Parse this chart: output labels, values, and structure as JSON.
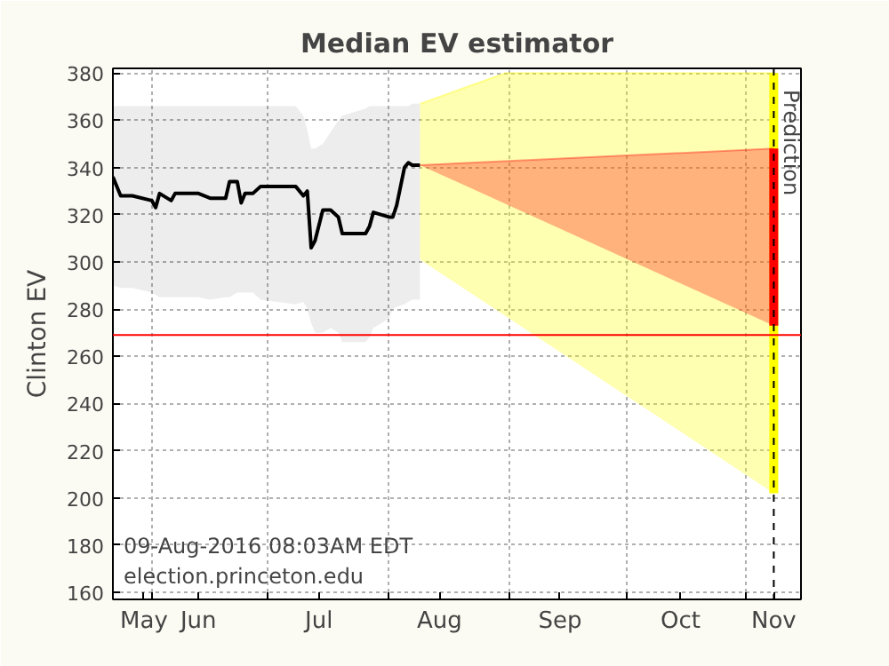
{
  "chart_data": {
    "type": "line",
    "title": "Median EV estimator",
    "ylabel": "Clinton EV",
    "xlim": [
      "2016-05-22",
      "2016-11-15"
    ],
    "ylim": [
      157,
      382
    ],
    "yticks": [
      160,
      180,
      200,
      220,
      240,
      260,
      280,
      300,
      320,
      340,
      360,
      380
    ],
    "xticks": [
      {
        "value": "2016-05-30",
        "label": "May"
      },
      {
        "value": "2016-06-01",
        "label": null
      },
      {
        "value": "2016-06-13",
        "label": "Jun"
      },
      {
        "value": "2016-07-01",
        "label": null
      },
      {
        "value": "2016-07-14",
        "label": "Jul"
      },
      {
        "value": "2016-08-01",
        "label": null
      },
      {
        "value": "2016-08-14",
        "label": "Aug"
      },
      {
        "value": "2016-09-01",
        "label": null
      },
      {
        "value": "2016-09-14",
        "label": "Sep"
      },
      {
        "value": "2016-10-01",
        "label": null
      },
      {
        "value": "2016-10-15",
        "label": "Oct"
      },
      {
        "value": "2016-11-01",
        "label": null
      },
      {
        "value": "2016-11-08",
        "label": "Nov"
      }
    ],
    "grid": true,
    "series": [
      {
        "color": "#000000",
        "x": [
          "2016-05-22",
          "2016-05-24",
          "2016-05-27",
          "2016-06-01",
          "2016-06-02",
          "2016-06-03",
          "2016-06-06",
          "2016-06-07",
          "2016-06-13",
          "2016-06-16",
          "2016-06-20",
          "2016-06-21",
          "2016-06-23",
          "2016-06-24",
          "2016-06-25",
          "2016-06-27",
          "2016-06-29",
          "2016-07-08",
          "2016-07-10",
          "2016-07-11",
          "2016-07-12",
          "2016-07-13",
          "2016-07-15",
          "2016-07-17",
          "2016-07-19",
          "2016-07-20",
          "2016-07-26",
          "2016-07-27",
          "2016-07-28",
          "2016-08-01",
          "2016-08-02",
          "2016-08-03",
          "2016-08-05",
          "2016-08-06",
          "2016-08-07",
          "2016-08-09"
        ],
        "values": [
          336,
          328,
          328,
          326,
          323,
          329,
          326,
          329,
          329,
          327,
          327,
          334,
          334,
          325,
          329,
          329,
          332,
          332,
          328,
          330,
          306,
          309,
          322,
          322,
          319,
          312,
          312,
          315,
          321,
          319,
          319,
          324,
          340,
          342,
          341,
          341
        ],
        "lower": [
          290,
          289,
          289,
          287,
          286,
          285,
          285,
          285,
          285,
          284,
          285,
          285,
          287,
          287,
          287,
          287,
          284,
          282,
          283,
          280,
          274,
          270,
          270,
          272,
          270,
          266,
          266,
          268,
          272,
          276,
          280,
          281,
          282,
          283,
          284,
          284
        ],
        "upper": [
          366,
          366,
          366,
          366,
          366,
          366,
          366,
          366,
          366,
          366,
          366,
          366,
          366,
          366,
          366,
          366,
          366,
          366,
          362,
          356,
          348,
          348,
          350,
          355,
          360,
          362,
          365,
          366,
          366,
          366,
          366,
          366,
          366,
          366,
          367,
          367
        ]
      },
      {
        "type": "line",
        "color": "#ffff00",
        "x": [
          "2016-08-09",
          "2016-08-31",
          "2016-11-08"
        ],
        "values": [
          367,
          380,
          380
        ],
        "lower": [
          301,
          277,
          202
        ],
        "upper": [
          367,
          380,
          380
        ]
      },
      {
        "type": "line",
        "color": "#ff0000",
        "x": [
          "2016-08-09",
          "2016-11-08"
        ],
        "values": [
          341,
          348
        ],
        "lower": [
          341,
          273
        ],
        "upper": [
          341,
          348
        ]
      }
    ],
    "ref_lines": [
      {
        "axis": "y",
        "value": 269,
        "color": "#ff0000"
      },
      {
        "axis": "x",
        "value": "2016-11-08",
        "label": "Prediction",
        "color": "#000000",
        "line_style": "dashed"
      }
    ],
    "annotations": [
      "09-Aug-2016 08:03AM EDT",
      "election.princeton.edu"
    ]
  }
}
